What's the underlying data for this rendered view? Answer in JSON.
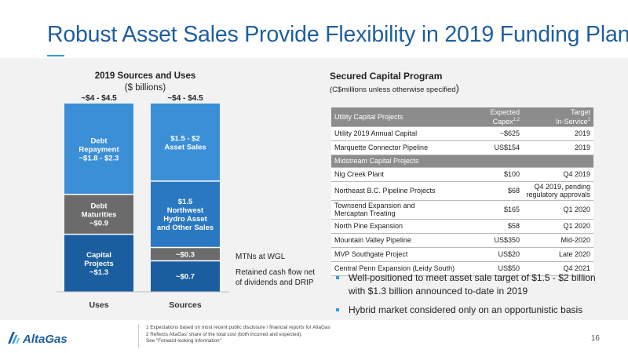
{
  "title": "Robust Asset Sales Provide Flexibility in 2019 Funding Plan",
  "chart": {
    "title": "2019 Sources and Uses",
    "subtitle": "($ billions)"
  },
  "chart_data": {
    "type": "bar",
    "stacked": true,
    "title": "2019 Sources and Uses",
    "subtitle": "($ billions)",
    "categories": [
      "Uses",
      "Sources"
    ],
    "totals": [
      "~$4 - $4.5",
      "~$4 - $4.5"
    ],
    "ylim": [
      0,
      4.25
    ],
    "stacks": [
      {
        "category": "Uses",
        "segments": [
          {
            "label_lines": [
              "Capital",
              "Projects",
              "~$1.3"
            ],
            "value": 1.3,
            "color": "#1a5ea0",
            "text_color": "#ffffff"
          },
          {
            "label_lines": [
              "Debt",
              "Maturities",
              "~$0.9"
            ],
            "value": 0.9,
            "color": "#6b6b6b",
            "text_color": "#ffffff"
          },
          {
            "label_lines": [
              "Debt",
              "Repayment",
              "~$1.8 - $2.3"
            ],
            "value": 2.05,
            "color": "#3a8fd6",
            "text_color": "#ffffff"
          }
        ]
      },
      {
        "category": "Sources",
        "segments": [
          {
            "label_lines": [
              "~$0.7"
            ],
            "value": 0.7,
            "color": "#1a5ea0",
            "text_color": "#ffffff"
          },
          {
            "label_lines": [
              "~$0.3"
            ],
            "value": 0.3,
            "color": "#6b6b6b",
            "text_color": "#ffffff"
          },
          {
            "label_lines": [
              "$1.5",
              "Northwest",
              "Hydro Asset",
              "and Other Sales"
            ],
            "value": 1.5,
            "color": "#2a78c2",
            "text_color": "#ffffff"
          },
          {
            "label_lines": [
              "$1.5 - $2",
              "Asset Sales"
            ],
            "value": 1.75,
            "color": "#3a8fd6",
            "text_color": "#ffffff"
          }
        ]
      }
    ],
    "annotations": [
      "MTNs at WGL",
      "Retained cash flow net of dividends and DRIP"
    ]
  },
  "side_notes": {
    "mtn": "MTNs at WGL",
    "retained_line1": "Retained cash flow net",
    "retained_line2": "of dividends and DRIP"
  },
  "table": {
    "title": "Secured Capital Program",
    "subtitle": "(C$millions unless otherwise specified",
    "subtitle_close": ")",
    "header": {
      "name": "Utility Capital Projects",
      "cost_line1": "Expected",
      "cost_line2": "Capex",
      "cost_sup": "1,2",
      "date_line1": "Target",
      "date_line2": "In-Service",
      "date_sup": "1"
    },
    "utility_rows": [
      {
        "name": "Utility 2019 Annual Capital",
        "cost": "~$625",
        "date": "2019"
      },
      {
        "name": "Marquette Connector Pipeline",
        "cost": "US$154",
        "date": "2019"
      }
    ],
    "midstream_header": "Midstream Capital Projects",
    "midstream_rows": [
      {
        "name": "Nig Creek Plant",
        "cost": "$100",
        "date": "Q4 2019"
      },
      {
        "name": "Northeast B.C. Pipeline Projects",
        "cost": "$68",
        "date": "Q4 2019, pending",
        "date_line2": "regulatory approvals"
      },
      {
        "name": "Townsend Expansion and",
        "name_line2": "Mercaptan Treating",
        "cost": "$165",
        "date": "Q1 2020"
      },
      {
        "name": "North Pine Expansion",
        "cost": "$58",
        "date": "Q1 2020"
      },
      {
        "name": "Mountain Valley Pipeline",
        "cost": "US$350",
        "date": "Mid-2020"
      },
      {
        "name": "MVP Southgate Project",
        "cost": "US$20",
        "date": "Late 2020"
      },
      {
        "name": "Central Penn Expansion (Leidy South)",
        "cost": "US$50",
        "date": "Q4 2021"
      }
    ]
  },
  "bullets": [
    "Well-positioned to meet asset sale target of $1.5 - $2 billion with $1.3 billion announced to-date in 2019",
    "Hybrid market considered only on an opportunistic basis"
  ],
  "footer": {
    "logo_text": "AltaGas",
    "note1": "1 Expectations based on most recent public disclosure / financial reports for AltaGas",
    "note2": "2 Reflects AltaGas' share of the total cost (both incurred and expected).",
    "note3": "See \"Forward-looking Information\"",
    "page_number": "16"
  },
  "colors": {
    "title_blue": "#1f5f9e",
    "accent": "#2e9fd9",
    "header_grey": "#8c8c8c",
    "band_grey": "#f2f2f2"
  }
}
